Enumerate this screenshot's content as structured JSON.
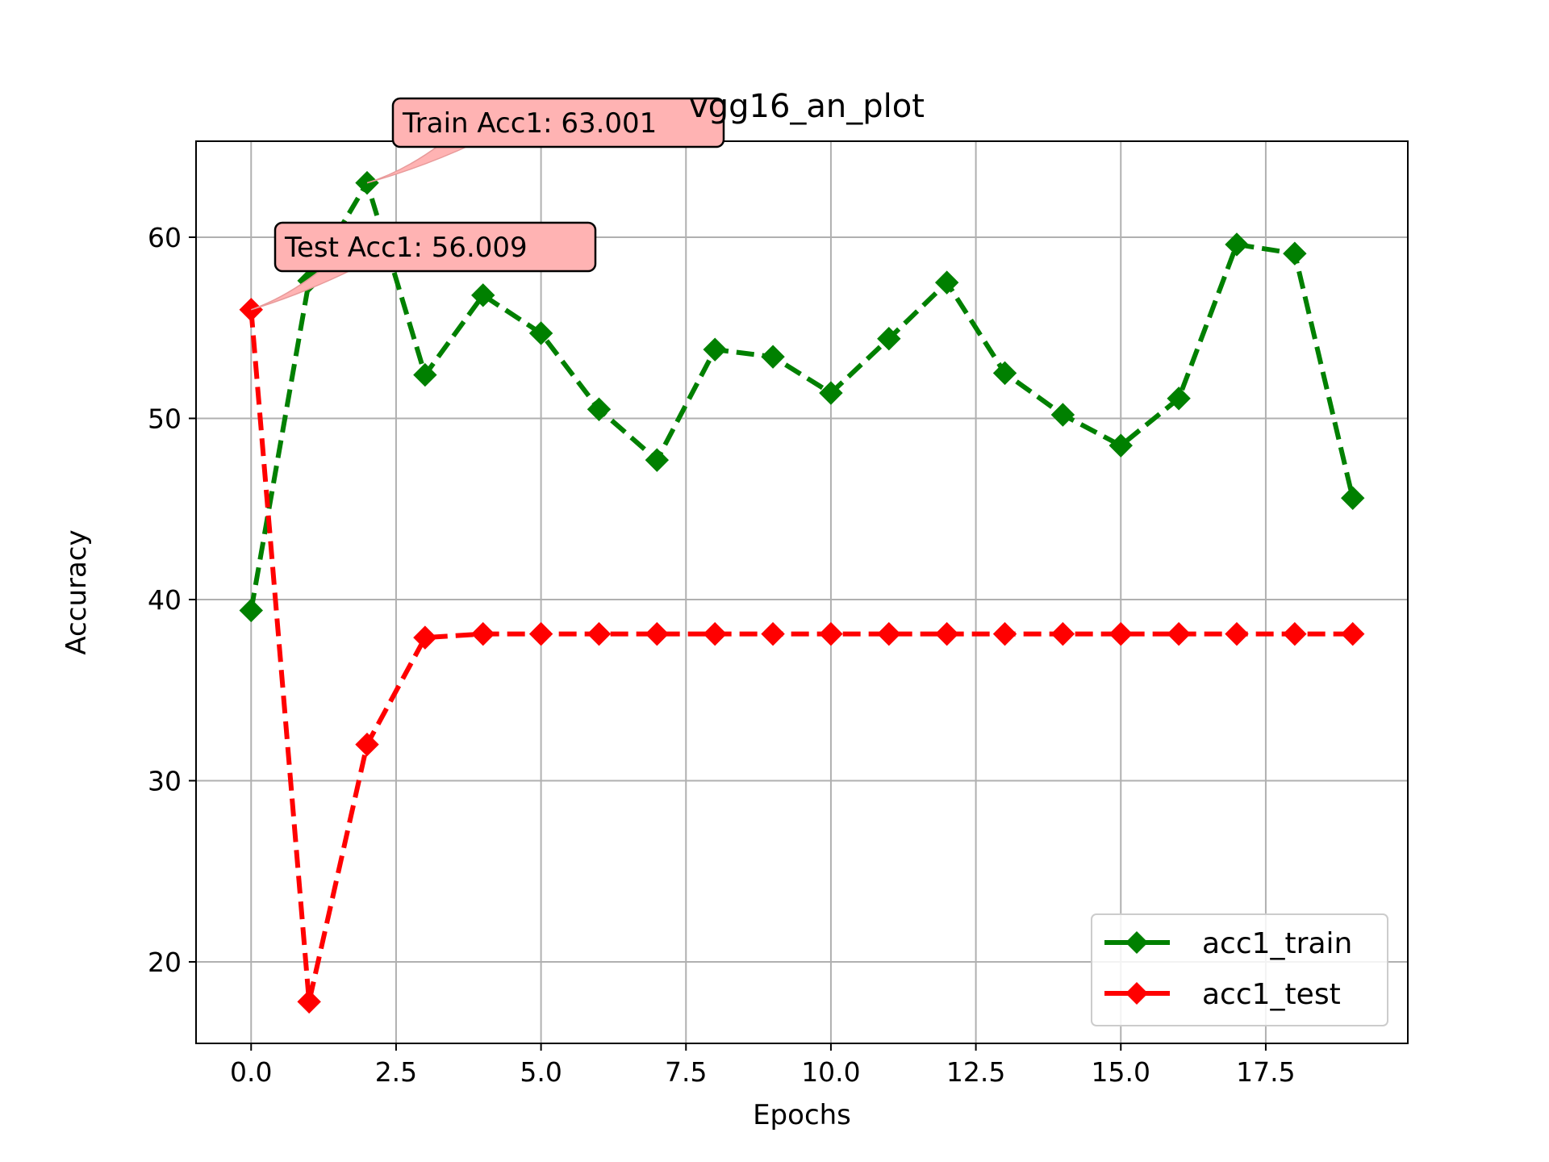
{
  "chart_data": {
    "type": "line",
    "title": "vgg16_an_plot",
    "xlabel": "Epochs",
    "ylabel": "Accuracy",
    "xlim": [
      -0.95,
      19.95
    ],
    "ylim": [
      15.5,
      65.3
    ],
    "x_ticks": [
      0,
      2.5,
      5,
      7.5,
      10,
      12.5,
      15,
      17.5
    ],
    "x_tick_labels": [
      "0.0",
      "2.5",
      "5.0",
      "7.5",
      "10.0",
      "12.5",
      "15.0",
      "17.5"
    ],
    "y_ticks": [
      20,
      30,
      40,
      50,
      60
    ],
    "y_tick_labels": [
      "20",
      "30",
      "40",
      "50",
      "60"
    ],
    "grid": true,
    "legend_position": "lower-right",
    "x": [
      0,
      1,
      2,
      3,
      4,
      5,
      6,
      7,
      8,
      9,
      10,
      11,
      12,
      13,
      14,
      15,
      16,
      17,
      18,
      19
    ],
    "series": [
      {
        "name": "acc1_train",
        "color": "#008000",
        "line_style": "dashed",
        "marker": "diamond",
        "values": [
          39.4,
          57.6,
          63.0,
          52.4,
          56.8,
          54.7,
          50.5,
          47.7,
          53.8,
          53.4,
          51.4,
          54.4,
          57.5,
          52.5,
          50.2,
          48.5,
          51.1,
          59.6,
          59.1,
          45.6
        ]
      },
      {
        "name": "acc1_test",
        "color": "#ff0000",
        "line_style": "dashed",
        "marker": "diamond",
        "values": [
          56.0,
          17.8,
          32.0,
          37.9,
          38.1,
          38.1,
          38.1,
          38.1,
          38.1,
          38.1,
          38.1,
          38.1,
          38.1,
          38.1,
          38.1,
          38.1,
          38.1,
          38.1,
          38.1,
          38.1
        ]
      }
    ],
    "annotations": [
      {
        "text": "Train Acc1: 63.001",
        "point": [
          2,
          63.0
        ],
        "box_color": "#ffb3b3",
        "arrow_color": "#ffb3b3"
      },
      {
        "text": "Test Acc1: 56.009",
        "point": [
          0,
          56.0
        ],
        "box_color": "#ffb3b3",
        "arrow_color": "#ffb3b3"
      }
    ]
  }
}
